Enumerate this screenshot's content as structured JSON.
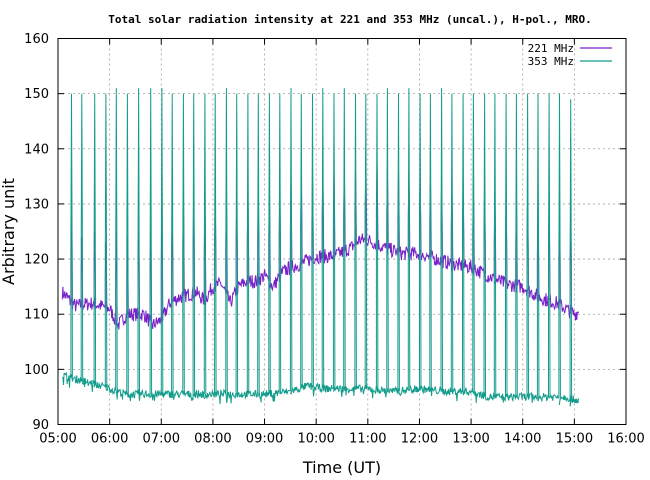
{
  "chart_data": {
    "type": "line",
    "title": "Total solar radiation intensity at 221 and 353 MHz (uncal.), H-pol., MRO.",
    "xlabel": "Time (UT)",
    "ylabel": "Arbitrary unit",
    "xlim": [
      "05:00",
      "16:00"
    ],
    "ylim": [
      90,
      160
    ],
    "x_ticks": [
      "05:00",
      "06:00",
      "07:00",
      "08:00",
      "09:00",
      "10:00",
      "11:00",
      "12:00",
      "13:00",
      "14:00",
      "15:00",
      "16:00"
    ],
    "y_ticks": [
      90,
      100,
      110,
      120,
      130,
      140,
      150,
      160
    ],
    "grid": true,
    "legend_position": "top-right",
    "series": [
      {
        "name": "221 MHz",
        "color": "#7b1fc9",
        "baseline": [
          [
            "05:05",
            114
          ],
          [
            "05:20",
            111.5
          ],
          [
            "05:40",
            112
          ],
          [
            "06:00",
            111
          ],
          [
            "06:10",
            108
          ],
          [
            "06:20",
            110
          ],
          [
            "06:40",
            110
          ],
          [
            "06:50",
            108
          ],
          [
            "07:00",
            109
          ],
          [
            "07:10",
            112
          ],
          [
            "07:20",
            113
          ],
          [
            "07:40",
            114
          ],
          [
            "07:50",
            112.5
          ],
          [
            "08:00",
            115
          ],
          [
            "08:10",
            115.5
          ],
          [
            "08:20",
            112
          ],
          [
            "08:30",
            115
          ],
          [
            "08:40",
            116
          ],
          [
            "08:50",
            116
          ],
          [
            "09:00",
            117
          ],
          [
            "09:10",
            115
          ],
          [
            "09:20",
            117.5
          ],
          [
            "09:30",
            118.5
          ],
          [
            "09:40",
            119
          ],
          [
            "10:00",
            120.5
          ],
          [
            "10:20",
            120.5
          ],
          [
            "10:40",
            122
          ],
          [
            "10:50",
            123.5
          ],
          [
            "11:00",
            123.5
          ],
          [
            "11:20",
            122
          ],
          [
            "11:40",
            121
          ],
          [
            "12:00",
            121
          ],
          [
            "12:20",
            120
          ],
          [
            "12:40",
            119
          ],
          [
            "13:00",
            118.5
          ],
          [
            "13:20",
            117
          ],
          [
            "13:40",
            115.5
          ],
          [
            "14:00",
            115
          ],
          [
            "14:20",
            113
          ],
          [
            "14:40",
            112
          ],
          [
            "14:50",
            111
          ],
          [
            "15:00",
            110
          ],
          [
            "15:05",
            110.5
          ]
        ],
        "spike_times": [
          "05:15",
          "05:27",
          "05:42",
          "05:55",
          "06:07",
          "06:20",
          "06:33",
          "06:47",
          "07:00",
          "07:12",
          "07:25",
          "07:37",
          "07:50",
          "08:02",
          "08:15",
          "08:27",
          "08:40",
          "08:52",
          "09:05",
          "09:17",
          "09:30",
          "09:42",
          "09:55",
          "10:07",
          "10:20",
          "10:32",
          "10:45",
          "10:57",
          "11:10",
          "11:22",
          "11:35",
          "11:47",
          "12:00",
          "12:12",
          "12:25",
          "12:37",
          "12:50",
          "13:02",
          "13:15",
          "13:27",
          "13:40",
          "13:52",
          "14:05",
          "14:17",
          "14:30",
          "14:42",
          "14:55",
          "15:05"
        ],
        "spike_peaks": [
          132,
          124,
          125,
          123,
          125,
          124,
          126,
          126,
          129,
          128,
          131,
          131,
          131,
          131,
          132,
          131,
          132,
          132,
          133,
          133,
          134,
          135,
          135,
          136,
          136,
          136,
          136,
          137,
          137,
          136,
          136,
          136,
          135,
          135,
          134,
          134,
          134,
          133,
          133,
          132,
          131,
          131,
          131,
          130,
          130,
          130,
          129,
          129
        ]
      },
      {
        "name": "353 MHz",
        "color": "#139c8b",
        "baseline": [
          [
            "05:05",
            99
          ],
          [
            "05:15",
            98.5
          ],
          [
            "05:40",
            97.5
          ],
          [
            "06:00",
            96.5
          ],
          [
            "06:20",
            95.5
          ],
          [
            "06:40",
            95.5
          ],
          [
            "07:00",
            95.5
          ],
          [
            "07:30",
            95.5
          ],
          [
            "08:00",
            95.5
          ],
          [
            "08:30",
            95.5
          ],
          [
            "09:00",
            95.5
          ],
          [
            "09:30",
            96
          ],
          [
            "09:50",
            97
          ],
          [
            "10:10",
            96.5
          ],
          [
            "10:40",
            96.5
          ],
          [
            "11:00",
            96.5
          ],
          [
            "11:30",
            96
          ],
          [
            "12:00",
            96.5
          ],
          [
            "12:30",
            96
          ],
          [
            "13:00",
            96
          ],
          [
            "13:20",
            95
          ],
          [
            "13:40",
            95
          ],
          [
            "14:00",
            95
          ],
          [
            "14:30",
            95
          ],
          [
            "14:50",
            95
          ],
          [
            "15:00",
            94.5
          ],
          [
            "15:05",
            94.5
          ]
        ],
        "spike_times": [
          "05:15",
          "05:27",
          "05:42",
          "05:55",
          "06:07",
          "06:20",
          "06:33",
          "06:47",
          "07:00",
          "07:12",
          "07:25",
          "07:37",
          "07:50",
          "08:02",
          "08:15",
          "08:27",
          "08:40",
          "08:52",
          "09:05",
          "09:17",
          "09:30",
          "09:42",
          "09:55",
          "10:07",
          "10:20",
          "10:32",
          "10:45",
          "10:57",
          "11:10",
          "11:22",
          "11:35",
          "11:47",
          "12:00",
          "12:12",
          "12:25",
          "12:37",
          "12:50",
          "13:02",
          "13:15",
          "13:27",
          "13:40",
          "13:52",
          "14:05",
          "14:17",
          "14:30",
          "14:42",
          "14:55",
          "15:05"
        ],
        "spike_peaks": [
          150,
          150,
          150,
          150,
          151,
          150,
          151,
          151,
          151,
          150,
          150,
          150,
          150,
          150,
          151,
          150,
          150,
          150,
          150,
          150,
          151,
          150,
          150,
          151,
          150,
          151,
          150,
          150,
          150,
          151,
          150,
          151,
          150,
          150,
          151,
          150,
          150,
          150,
          150,
          150,
          150,
          150,
          150,
          150,
          150,
          150,
          149,
          148
        ]
      }
    ]
  }
}
